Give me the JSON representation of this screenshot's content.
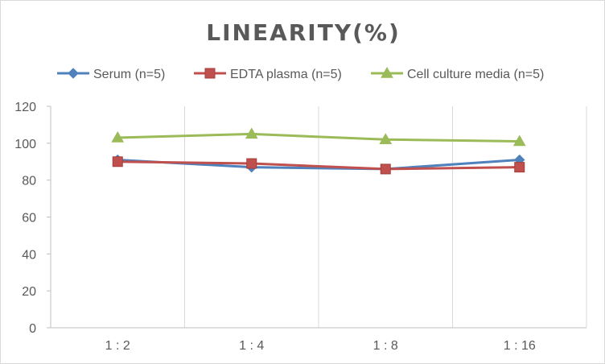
{
  "chart_data": {
    "type": "line",
    "title": "LINEARITY(%)",
    "categories": [
      "1:2",
      "1:4",
      "1:8",
      "1:16"
    ],
    "xlabel": "",
    "ylabel": "",
    "ylim": [
      0,
      120
    ],
    "yticks": [
      0,
      20,
      40,
      60,
      80,
      100,
      120
    ],
    "grid": "vertical",
    "legend_position": "top",
    "series": [
      {
        "name": "Serum (n=5)",
        "values": [
          91,
          87,
          86,
          91
        ],
        "color": "#4f81bd",
        "marker": "diamond"
      },
      {
        "name": "EDTA plasma (n=5)",
        "values": [
          90,
          89,
          86,
          87
        ],
        "color": "#c0504d",
        "marker": "square"
      },
      {
        "name": "Cell culture media (n=5)",
        "values": [
          103,
          105,
          102,
          101
        ],
        "color": "#9bbb59",
        "marker": "triangle"
      }
    ]
  }
}
